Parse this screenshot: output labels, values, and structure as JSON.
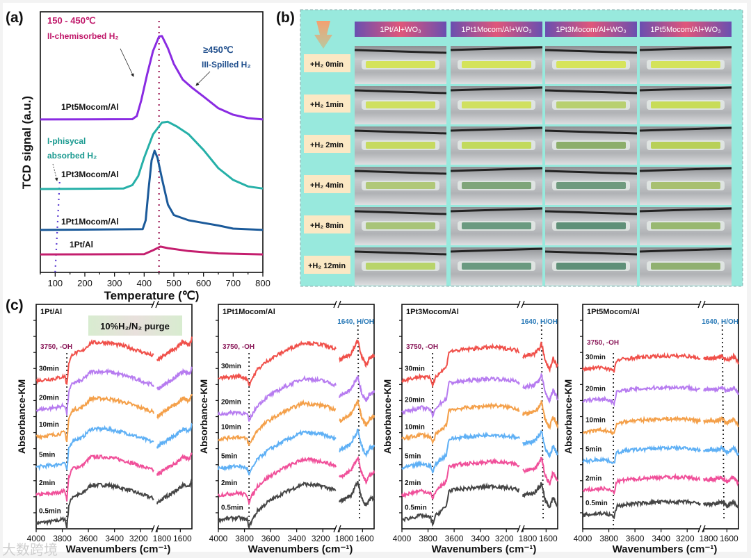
{
  "panels": {
    "a": "(a)",
    "b": "(b)",
    "c": "(c)"
  },
  "watermark": "大数跨境",
  "chart_data": [
    {
      "id": "a",
      "type": "line",
      "xlabel": "Temperature (℃)",
      "ylabel": "TCD signal (a.u.)",
      "xlim": [
        50,
        800
      ],
      "ylim": [
        0,
        100
      ],
      "xticks": [
        "100",
        "200",
        "300",
        "400",
        "500",
        "600",
        "700",
        "800"
      ],
      "annotations": {
        "range_low": "150 - 450℃",
        "chemisorbed": "II-chemisorbed H₂",
        "range_high": "≥450℃",
        "spilled": "III-Spilled H₂",
        "physical1": "I-phisycal",
        "physical2": "absorbed H₂"
      },
      "reference_lines_T": [
        450,
        100
      ],
      "series": [
        {
          "name": "1Pt5Mocom/Al",
          "color": "#8a2be2",
          "points": [
            [
              50,
              58.7
            ],
            [
              360,
              58.8
            ],
            [
              375,
              60
            ],
            [
              390,
              66
            ],
            [
              410,
              76
            ],
            [
              430,
              85
            ],
            [
              450,
              90.5
            ],
            [
              460,
              90.7
            ],
            [
              480,
              86
            ],
            [
              500,
              80
            ],
            [
              530,
              74
            ],
            [
              560,
              71
            ],
            [
              600,
              67.5
            ],
            [
              650,
              63
            ],
            [
              700,
              60.5
            ],
            [
              750,
              59.2
            ],
            [
              800,
              58.7
            ]
          ]
        },
        {
          "name": "1Pt3Mocom/Al",
          "color": "#26b0a8",
          "points": [
            [
              50,
              32
            ],
            [
              330,
              32.2
            ],
            [
              360,
              33.5
            ],
            [
              380,
              37
            ],
            [
              400,
              44
            ],
            [
              430,
              53
            ],
            [
              460,
              57.5
            ],
            [
              480,
              57.8
            ],
            [
              510,
              56
            ],
            [
              550,
              53
            ],
            [
              600,
              47
            ],
            [
              650,
              40
            ],
            [
              700,
              35.5
            ],
            [
              750,
              33
            ],
            [
              800,
              32.2
            ]
          ]
        },
        {
          "name": "1Pt1Mocom/Al",
          "color": "#1b5a9a",
          "points": [
            [
              50,
              16.3
            ],
            [
              395,
              16.6
            ],
            [
              405,
              20
            ],
            [
              415,
              32
            ],
            [
              425,
              43
            ],
            [
              435,
              46.7
            ],
            [
              445,
              44
            ],
            [
              460,
              36
            ],
            [
              480,
              26
            ],
            [
              500,
              22
            ],
            [
              550,
              20
            ],
            [
              600,
              19
            ],
            [
              650,
              18
            ],
            [
              700,
              16.8
            ],
            [
              800,
              16.3
            ]
          ]
        },
        {
          "name": "1Pt/Al",
          "color": "#c41e6e",
          "points": [
            [
              50,
              6.9
            ],
            [
              400,
              7
            ],
            [
              430,
              8.5
            ],
            [
              455,
              9.9
            ],
            [
              480,
              9.3
            ],
            [
              550,
              8.2
            ],
            [
              650,
              7.3
            ],
            [
              800,
              6.9
            ]
          ]
        }
      ]
    },
    {
      "id": "c",
      "type": "line",
      "xlabel": "Wavenumbers (cm⁻¹)",
      "ylabel": "Absorbance-KM",
      "purge_label": "10%H₂/N₂ purge",
      "oh_label": "3750, -OH",
      "hoh_label": "1640, H/OH",
      "xticks_left": [
        "4000",
        "3800",
        "3600",
        "3400",
        "3200"
      ],
      "xticks_right": [
        "1800",
        "1600"
      ],
      "times": [
        "0.5min",
        "2min",
        "5min",
        "10min",
        "20min",
        "30min"
      ],
      "time_colors": [
        "#454545",
        "#f0509a",
        "#5fb0f5",
        "#f4a04a",
        "#b77cf0",
        "#f0504a"
      ],
      "subplots": [
        {
          "title": "1Pt/Al",
          "show_hoh": false,
          "offsets": [
            2.5,
            15,
            27.5,
            41,
            53,
            66
          ],
          "left": [
            [
              4000,
              0
            ],
            [
              3850,
              1
            ],
            [
              3780,
              2
            ],
            [
              3765,
              -2
            ],
            [
              3750,
              8
            ],
            [
              3720,
              12
            ],
            [
              3650,
              13
            ],
            [
              3580,
              17
            ],
            [
              3450,
              17
            ],
            [
              3300,
              15
            ],
            [
              3150,
              12
            ],
            [
              3100,
              11
            ]
          ],
          "right": [
            [
              1800,
              9
            ],
            [
              1720,
              12
            ],
            [
              1650,
              14
            ],
            [
              1580,
              17
            ],
            [
              1520,
              16
            ],
            [
              1500,
              19
            ]
          ]
        },
        {
          "title": "1Pt1Mocom/Al",
          "show_hoh": true,
          "offsets": [
            4,
            15,
            27,
            40,
            51,
            67
          ],
          "left": [
            [
              4000,
              0
            ],
            [
              3850,
              1
            ],
            [
              3780,
              0
            ],
            [
              3765,
              -3
            ],
            [
              3740,
              0
            ],
            [
              3700,
              4
            ],
            [
              3620,
              8
            ],
            [
              3500,
              12
            ],
            [
              3350,
              16
            ],
            [
              3200,
              15
            ],
            [
              3100,
              13
            ]
          ],
          "right": [
            [
              1800,
              8
            ],
            [
              1700,
              11
            ],
            [
              1650,
              16
            ],
            [
              1640,
              17
            ],
            [
              1610,
              10
            ],
            [
              1570,
              6
            ],
            [
              1540,
              9
            ],
            [
              1500,
              10
            ]
          ]
        },
        {
          "title": "1Pt3Mocom/Al",
          "show_hoh": true,
          "offsets": [
            4,
            15,
            27,
            40,
            52,
            66
          ],
          "left": [
            [
              4000,
              0
            ],
            [
              3850,
              2
            ],
            [
              3780,
              1
            ],
            [
              3765,
              -2
            ],
            [
              3740,
              2
            ],
            [
              3660,
              6
            ],
            [
              3640,
              13
            ],
            [
              3500,
              14
            ],
            [
              3300,
              15
            ],
            [
              3150,
              14
            ],
            [
              3100,
              13
            ]
          ],
          "right": [
            [
              1800,
              11
            ],
            [
              1700,
              12
            ],
            [
              1650,
              15
            ],
            [
              1640,
              17
            ],
            [
              1610,
              9
            ],
            [
              1570,
              5
            ],
            [
              1540,
              10
            ],
            [
              1500,
              6
            ]
          ]
        },
        {
          "title": "1Pt5Mocom/Al",
          "show_hoh": true,
          "offsets": [
            6,
            17,
            30,
            43,
            57,
            71
          ],
          "left": [
            [
              4000,
              0
            ],
            [
              3850,
              1
            ],
            [
              3780,
              0
            ],
            [
              3760,
              -1
            ],
            [
              3740,
              4
            ],
            [
              3650,
              5
            ],
            [
              3400,
              6
            ],
            [
              3200,
              6
            ],
            [
              3100,
              5
            ]
          ],
          "right": [
            [
              1800,
              5
            ],
            [
              1700,
              5
            ],
            [
              1640,
              6
            ],
            [
              1600,
              4
            ],
            [
              1540,
              6
            ],
            [
              1500,
              3
            ]
          ]
        }
      ]
    }
  ],
  "photo_grid": {
    "columns": [
      "1Pt/Al+WO₃",
      "1Pt1Mocom/Al+WO₃",
      "1Pt3Mocom/Al+WO₃",
      "1Pt5Mocom/Al+WO₃"
    ],
    "rows": [
      "+H₂ 0min",
      "+H₂ 1min",
      "+H₂ 2min",
      "+H₂ 4min",
      "+H₂ 8min",
      "+H₂ 12min"
    ],
    "tube_colors": [
      [
        "#d4e35a",
        "#d4e35a",
        "#d6e45c",
        "#d4e35a"
      ],
      [
        "#cfe060",
        "#d0e060",
        "#b8d070",
        "#c8dc58"
      ],
      [
        "#c6da60",
        "#c2da5c",
        "#8cae6a",
        "#b8d058"
      ],
      [
        "#b0c878",
        "#7fa57a",
        "#6f9a7e",
        "#a8c070"
      ],
      [
        "#a8c478",
        "#6a9a80",
        "#5f9078",
        "#98b870"
      ],
      [
        "#b8d46a",
        "#6a9a80",
        "#5f9078",
        "#90b070"
      ]
    ]
  }
}
